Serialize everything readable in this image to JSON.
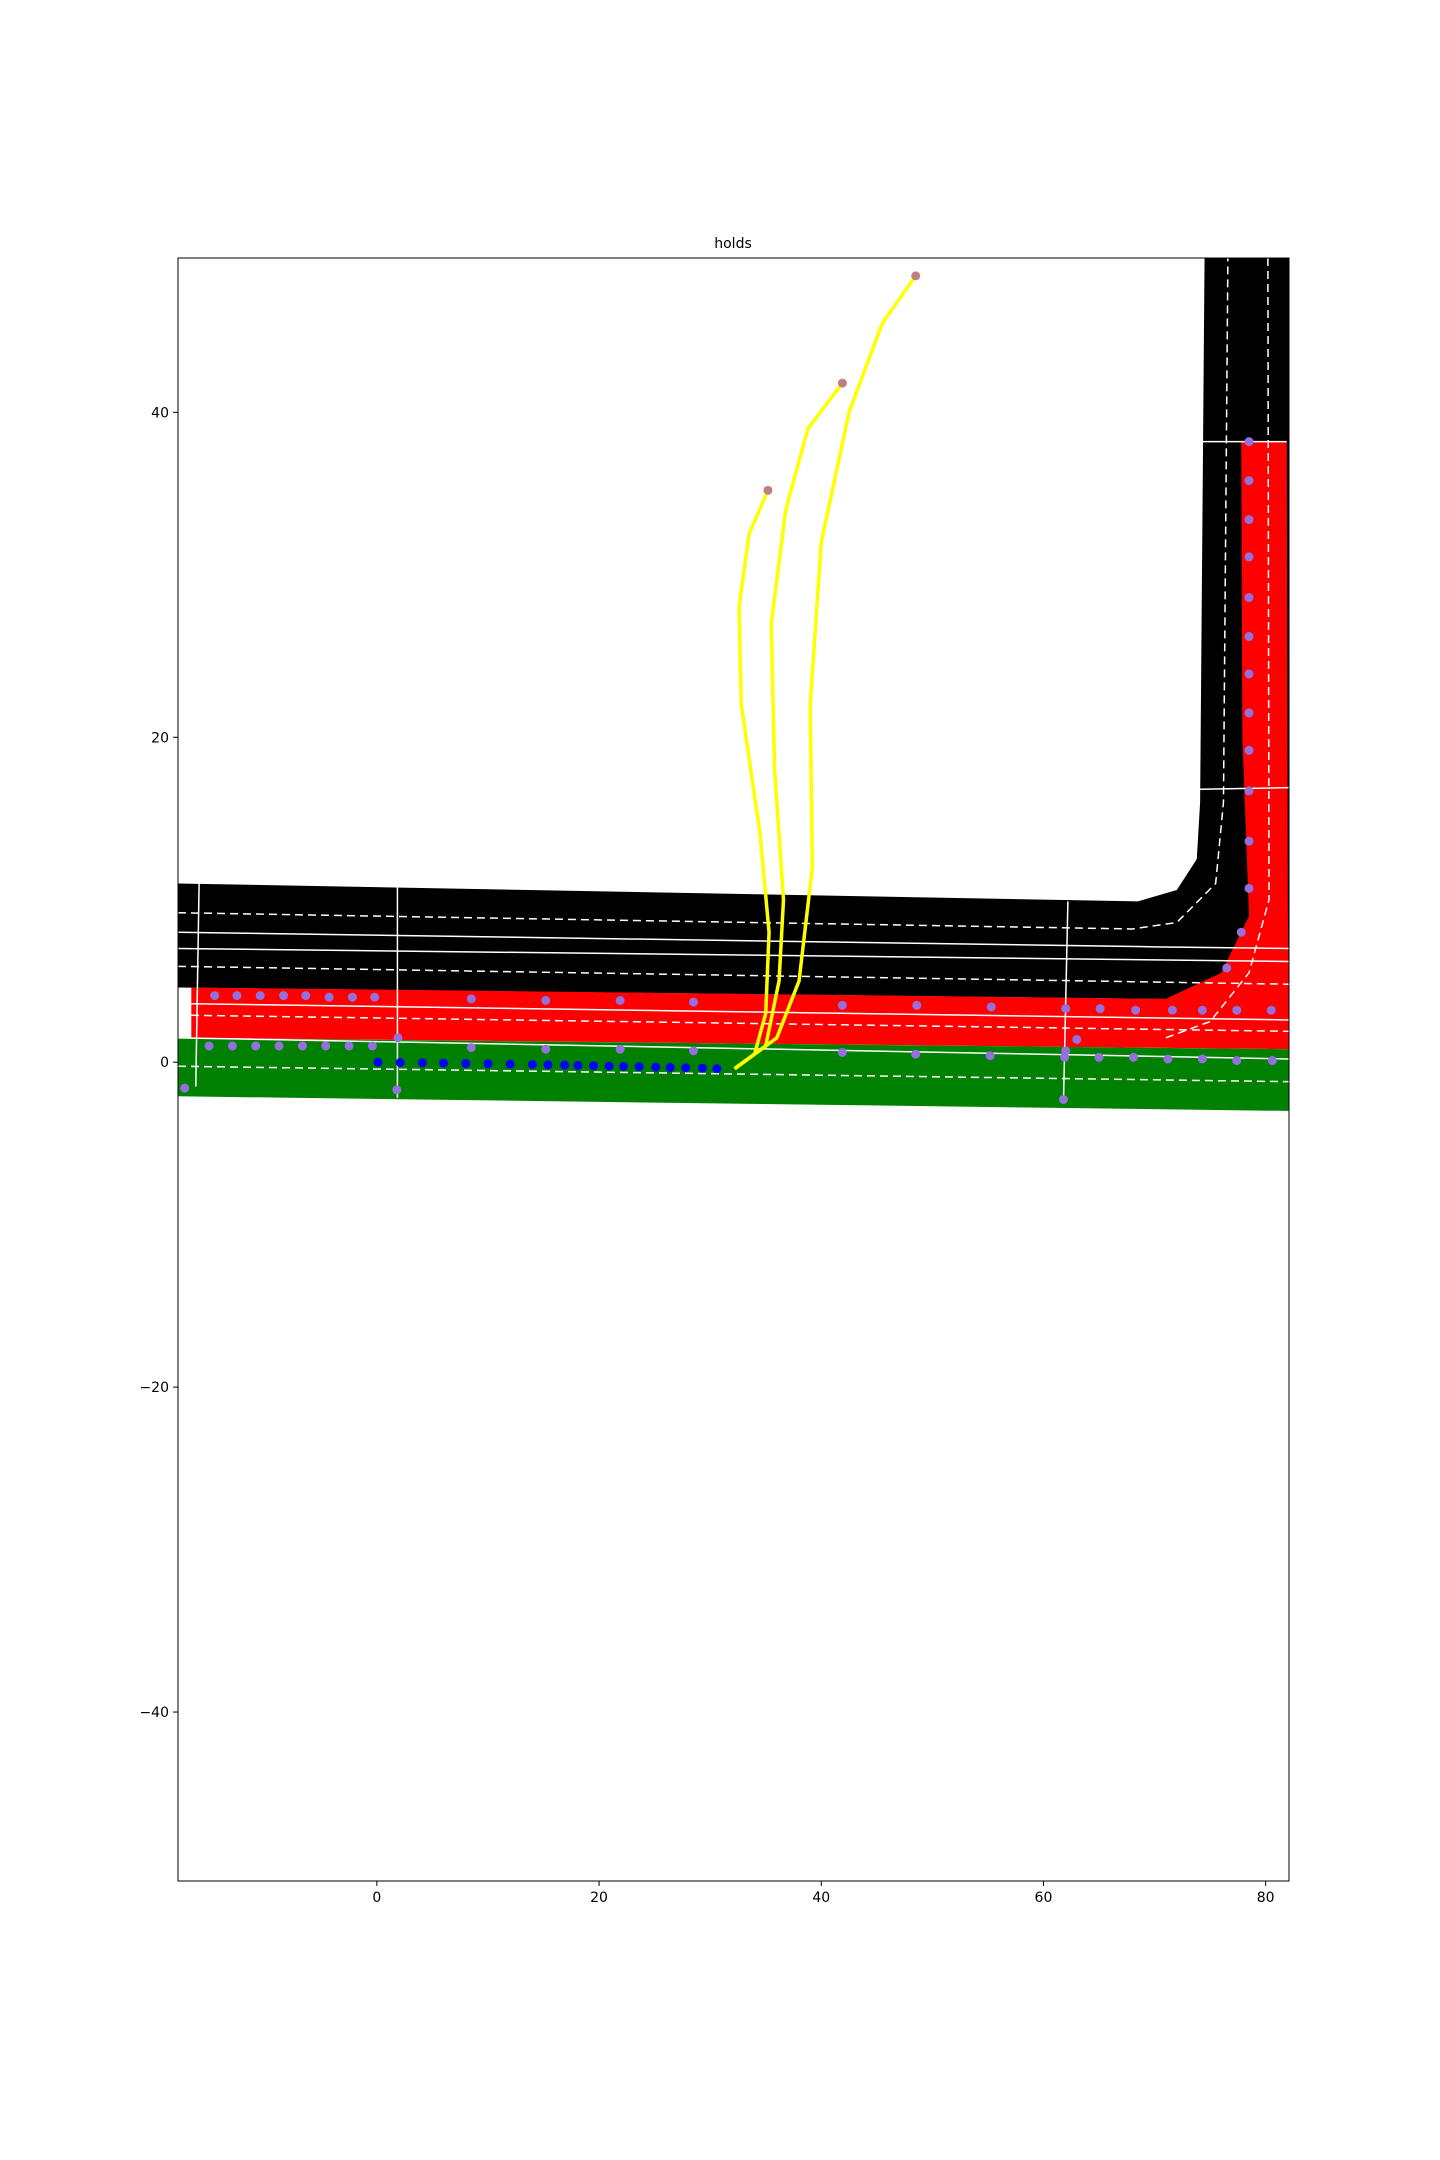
{
  "chart_data": {
    "type": "scatter",
    "title": "holds",
    "xlim": [
      -17.9,
      82.1
    ],
    "ylim": [
      -50.4,
      49.5
    ],
    "xticks": [
      0,
      20,
      40,
      60,
      80
    ],
    "yticks": [
      {
        "value": -40,
        "label": "−40"
      },
      {
        "value": -20,
        "label": "−20"
      },
      0,
      20,
      40
    ],
    "polygons": [
      {
        "color": "#000000",
        "x": [
          -17.9,
          68.5,
          72,
          73.8,
          74.1,
          74.5,
          82.1,
          82.1,
          -17.9
        ],
        "y": [
          11.0,
          9.9,
          10.6,
          12.5,
          16,
          49.5,
          49.5,
          3.8,
          4.6
        ]
      },
      {
        "color": "#ff0000",
        "x": [
          -16.7,
          71,
          76,
          78.5,
          77.9,
          77.8,
          81.9,
          82,
          82.1,
          82.1,
          -16.7
        ],
        "y": [
          4.6,
          3.9,
          5.5,
          9,
          20,
          38.2,
          38.2,
          9,
          3.8,
          0.8,
          1.5
        ]
      },
      {
        "color": "#008000",
        "x": [
          -17.9,
          82.1,
          82.1,
          -17.9
        ],
        "y": [
          1.5,
          0.8,
          -3.0,
          -2.1
        ]
      }
    ],
    "lines": [
      {
        "color": "#ffffff",
        "width": 1.5,
        "dash": true,
        "x": [
          -17.9,
          68,
          72,
          75.5,
          76.2,
          76.6
        ],
        "y": [
          9.2,
          8.2,
          8.6,
          11,
          16,
          49.5
        ]
      },
      {
        "color": "#ffffff",
        "width": 1.5,
        "dash": false,
        "x": [
          -17.9,
          70,
          82.1
        ],
        "y": [
          8.0,
          7.1,
          7.0
        ]
      },
      {
        "color": "#ffffff",
        "width": 1.5,
        "dash": false,
        "x": [
          -17.9,
          70,
          82.1
        ],
        "y": [
          7.0,
          6.3,
          6.2
        ]
      },
      {
        "color": "#ffffff",
        "width": 1.5,
        "dash": true,
        "x": [
          -17.9,
          82.1
        ],
        "y": [
          5.9,
          4.8
        ]
      },
      {
        "color": "#ffffff",
        "width": 1.5,
        "dash": false,
        "x": [
          -16.7,
          82.1
        ],
        "y": [
          3.6,
          2.6
        ]
      },
      {
        "color": "#ffffff",
        "width": 1.5,
        "dash": true,
        "x": [
          -17.9,
          82.1
        ],
        "y": [
          2.9,
          1.9
        ]
      },
      {
        "color": "#ffffff",
        "width": 1.5,
        "dash": false,
        "x": [
          -17.9,
          82.1
        ],
        "y": [
          1.5,
          0.2
        ]
      },
      {
        "color": "#ffffff",
        "width": 1.5,
        "dash": true,
        "x": [
          -17.9,
          82.1
        ],
        "y": [
          -0.25,
          -1.2
        ]
      },
      {
        "color": "#ffffff",
        "width": 1.5,
        "dash": false,
        "x": [
          -16,
          -16.3
        ],
        "y": [
          11,
          -1.5
        ]
      },
      {
        "color": "#ffffff",
        "width": 1.5,
        "dash": false,
        "x": [
          1.85,
          1.85
        ],
        "y": [
          10.8,
          -2.2
        ]
      },
      {
        "color": "#ffffff",
        "width": 1.5,
        "dash": false,
        "x": [
          62.2,
          61.8
        ],
        "y": [
          9.9,
          -2.5
        ]
      },
      {
        "color": "#ffffff",
        "width": 1.5,
        "dash": false,
        "x": [
          74.1,
          81.9
        ],
        "y": [
          38.2,
          38.2
        ]
      },
      {
        "color": "#ffffff",
        "width": 1.5,
        "dash": false,
        "x": [
          74.1,
          82.1
        ],
        "y": [
          16.8,
          16.9
        ]
      },
      {
        "color": "#ffffff",
        "width": 1.5,
        "dash": true,
        "x": [
          80.2,
          80.3,
          78.5,
          75,
          71
        ],
        "y": [
          49.5,
          10,
          5.5,
          2.5,
          1.5
        ]
      },
      {
        "color": "#ffff00",
        "width": 3.5,
        "dash": false,
        "x": [
          32.2,
          34,
          35,
          35.3,
          34.5,
          32.8,
          32.6,
          33.5,
          35.2
        ],
        "y": [
          -0.4,
          0.5,
          3,
          8,
          14,
          22,
          28,
          32.5,
          35.2
        ]
      },
      {
        "color": "#ffff00",
        "width": 3.5,
        "dash": false,
        "x": [
          32.2,
          35,
          36.2,
          36.6,
          35.8,
          35.5,
          36.8,
          38.8,
          41.9
        ],
        "y": [
          -0.4,
          1,
          5,
          10,
          18,
          27,
          34,
          39,
          41.8
        ]
      },
      {
        "color": "#ffff00",
        "width": 3.5,
        "dash": false,
        "x": [
          32.2,
          36,
          38,
          39.2,
          39,
          40,
          42.5,
          45.5,
          48.5
        ],
        "y": [
          -0.4,
          1.5,
          5,
          12,
          22,
          32,
          40,
          45.5,
          48.4
        ]
      }
    ],
    "series": [
      {
        "color": "#9370db",
        "x": [
          -14.6,
          -12.6,
          -10.5,
          -8.4,
          -6.4,
          -4.3,
          -2.2,
          -0.2,
          8.5,
          15.2,
          21.9,
          28.5,
          41.9,
          48.6,
          55.3,
          62.0,
          65.1,
          68.3,
          71.6,
          74.3,
          77.4,
          80.5
        ],
        "y": [
          4.1,
          4.1,
          4.1,
          4.1,
          4.1,
          4.0,
          4.0,
          4.0,
          3.9,
          3.8,
          3.8,
          3.7,
          3.5,
          3.5,
          3.4,
          3.3,
          3.3,
          3.2,
          3.2,
          3.2,
          3.2,
          3.2
        ]
      },
      {
        "color": "#9370db",
        "x": [
          -15.1,
          -13.0,
          -10.9,
          -8.8,
          -6.7,
          -4.6,
          -2.5,
          -0.4,
          1.9,
          8.5,
          15.2,
          21.9,
          28.5,
          41.9,
          48.5,
          55.2,
          61.9,
          65.0,
          68.1,
          71.2,
          74.3,
          77.4,
          80.6
        ],
        "y": [
          1.0,
          1.0,
          1.0,
          1.0,
          1.0,
          1.0,
          1.0,
          1.0,
          1.5,
          0.9,
          0.8,
          0.8,
          0.7,
          0.6,
          0.5,
          0.4,
          0.3,
          0.3,
          0.3,
          0.2,
          0.2,
          0.1,
          0.1
        ]
      },
      {
        "color": "#9370db",
        "x": [
          78.5,
          78.5,
          78.5,
          78.5,
          78.5,
          78.5,
          78.5,
          78.5,
          78.5,
          78.5,
          78.5,
          78.5,
          77.8,
          76.5
        ],
        "y": [
          38.2,
          35.8,
          33.4,
          31.1,
          28.6,
          26.2,
          23.9,
          21.5,
          19.2,
          16.7,
          13.6,
          10.7,
          8.0,
          5.8
        ]
      },
      {
        "color": "#9370db",
        "x": [
          -17.3,
          1.8,
          61.8,
          62.0,
          63.0
        ],
        "y": [
          -1.6,
          -1.7,
          -2.3,
          0.7,
          1.4
        ]
      },
      {
        "color": "#0000ff",
        "x": [
          0.1,
          2.1,
          4.1,
          6.0,
          8.0,
          10.0,
          12.0,
          14.0,
          15.4,
          16.9,
          18.1,
          19.5,
          20.9,
          22.2,
          23.6,
          25.1,
          26.4,
          27.8,
          29.3,
          30.6
        ],
        "y": [
          0.0,
          -0.02,
          -0.04,
          -0.06,
          -0.08,
          -0.1,
          -0.12,
          -0.14,
          -0.16,
          -0.18,
          -0.2,
          -0.22,
          -0.24,
          -0.26,
          -0.28,
          -0.3,
          -0.32,
          -0.34,
          -0.37,
          -0.4
        ]
      },
      {
        "color": "#c08080",
        "x": [
          35.2,
          41.9,
          48.5
        ],
        "y": [
          35.2,
          41.8,
          48.4
        ]
      }
    ]
  }
}
